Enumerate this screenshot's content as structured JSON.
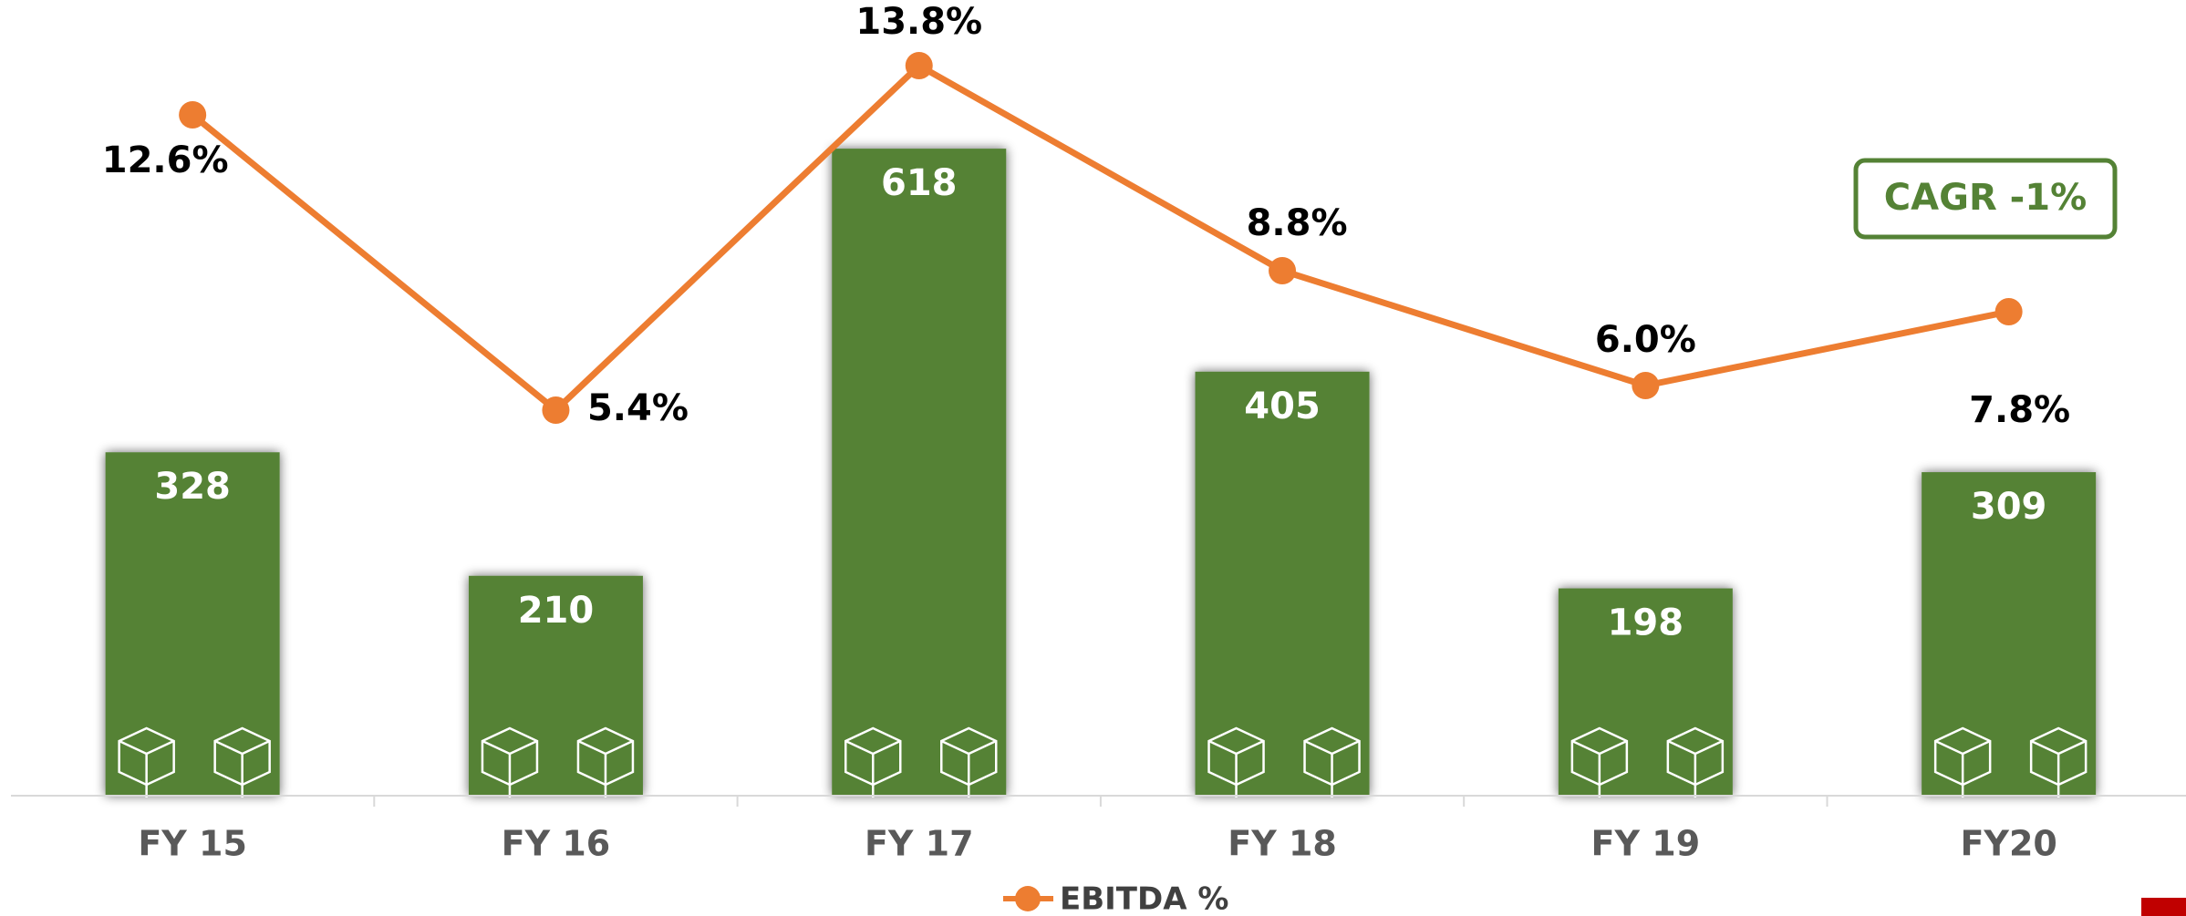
{
  "chart_data": {
    "type": "combo",
    "categories": [
      "FY 15",
      "FY 16",
      "FY 17",
      "FY 18",
      "FY 19",
      "FY20"
    ],
    "ylim": [
      0,
      760
    ],
    "y2lim": [
      -4,
      15.4
    ],
    "series": [
      {
        "type": "bar",
        "color": "#548235",
        "values": [
          328,
          210,
          618,
          405,
          198,
          309
        ]
      },
      {
        "type": "line",
        "name": "EBITDA %",
        "axis": "y2",
        "color": "#ED7D31",
        "values": [
          12.6,
          5.4,
          13.8,
          8.8,
          6.0,
          7.8
        ],
        "value_labels": [
          "12.6%",
          "5.4%",
          "13.8%",
          "8.8%",
          "6.0%",
          "7.8%"
        ]
      }
    ],
    "annotation": "CAGR -1%"
  }
}
